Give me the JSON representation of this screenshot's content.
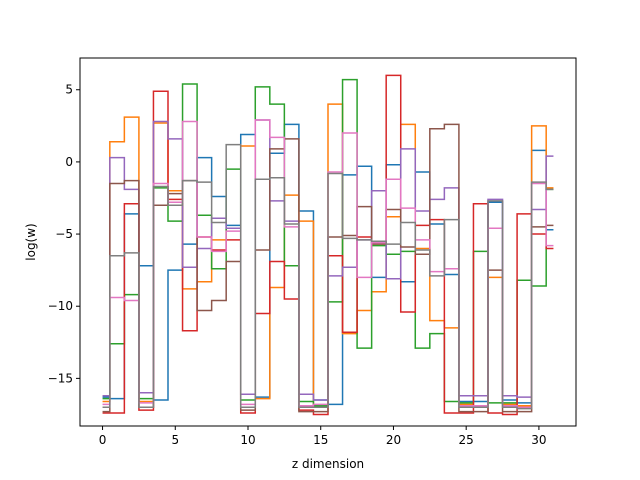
{
  "chart_data": {
    "type": "line",
    "drawstyle": "steps-mid",
    "title": "",
    "xlabel": "z dimension",
    "ylabel": "log(w)",
    "xlim": [
      -1.55,
      32.55
    ],
    "ylim": [
      -18.3,
      7.2
    ],
    "xticks": [
      0,
      5,
      10,
      15,
      20,
      25,
      30
    ],
    "yticks": [
      -15,
      -10,
      -5,
      0,
      5
    ],
    "grid": false,
    "legend": "none",
    "x": [
      0,
      1,
      2,
      3,
      4,
      5,
      6,
      7,
      8,
      9,
      10,
      11,
      12,
      13,
      14,
      15,
      16,
      17,
      18,
      19,
      20,
      21,
      22,
      23,
      24,
      25,
      26,
      27,
      28,
      29,
      30,
      31
    ],
    "series": [
      {
        "color": "#1f77b4",
        "values": [
          -16.3,
          -16.4,
          -3.6,
          -7.2,
          -16.5,
          -7.5,
          -5.7,
          0.3,
          -2.4,
          -4.4,
          1.9,
          -16.3,
          0.6,
          2.6,
          -3.4,
          -16.5,
          -16.8,
          -0.9,
          -0.3,
          -8.0,
          -0.2,
          -8.3,
          -0.7,
          -4.3,
          -7.8,
          -16.6,
          -16.6,
          -2.8,
          -16.5,
          -16.7,
          0.8,
          -4.7
        ]
      },
      {
        "color": "#ff7f0e",
        "values": [
          -16.6,
          1.4,
          3.1,
          -16.6,
          2.7,
          -2.0,
          -8.8,
          -8.3,
          -5.4,
          -4.6,
          1.1,
          -16.4,
          -8.7,
          -2.3,
          -4.1,
          -16.9,
          4.0,
          -11.9,
          -10.3,
          -9.0,
          -3.8,
          2.6,
          -6.0,
          -11.0,
          -11.5,
          -16.8,
          -16.9,
          -8.0,
          -16.8,
          -16.9,
          2.5,
          -1.8
        ]
      },
      {
        "color": "#2ca02c",
        "values": [
          -16.4,
          -12.6,
          -9.2,
          -16.4,
          -1.8,
          -4.1,
          5.4,
          -3.7,
          -7.4,
          -0.5,
          -16.5,
          5.2,
          4.0,
          -7.2,
          -16.6,
          -16.9,
          -9.7,
          5.7,
          -12.9,
          -5.8,
          -6.4,
          -6.2,
          -12.9,
          -11.9,
          -16.6,
          -16.7,
          -6.2,
          -16.7,
          -16.7,
          -8.2,
          -8.6,
          -1.9
        ]
      },
      {
        "color": "#d62728",
        "values": [
          -17.4,
          -17.4,
          -2.9,
          -17.2,
          4.9,
          -2.6,
          -11.7,
          -5.2,
          -6.1,
          -5.4,
          -17.4,
          -10.5,
          -6.9,
          -9.5,
          -17.2,
          -17.5,
          -6.5,
          -11.8,
          -5.2,
          -5.6,
          6.0,
          -10.4,
          -4.4,
          -4.0,
          -17.4,
          -17.4,
          -2.9,
          -17.4,
          -17.5,
          -3.6,
          -5.0,
          -6.0
        ]
      },
      {
        "color": "#9467bd",
        "values": [
          -16.2,
          0.3,
          -1.9,
          -16.0,
          2.8,
          1.6,
          -7.3,
          -6.0,
          -3.9,
          -4.6,
          -16.1,
          2.9,
          -2.7,
          -4.1,
          -16.1,
          -16.5,
          -7.9,
          -7.3,
          -5.4,
          -2.0,
          -8.1,
          0.9,
          -3.4,
          -2.6,
          -1.8,
          -16.2,
          -16.2,
          -2.6,
          -16.2,
          -16.3,
          -3.3,
          0.4
        ]
      },
      {
        "color": "#8c564b",
        "values": [
          -17.3,
          -1.5,
          -1.3,
          -17.0,
          -3.0,
          -2.2,
          -1.3,
          -10.3,
          -9.6,
          -6.9,
          -17.2,
          -6.1,
          0.9,
          1.6,
          -17.3,
          -17.3,
          -5.2,
          -5.1,
          -3.1,
          -5.7,
          -3.3,
          -5.9,
          -6.4,
          2.3,
          2.6,
          -17.3,
          -17.3,
          -7.5,
          -17.3,
          -17.3,
          -4.5,
          -4.4
        ]
      },
      {
        "color": "#e377c2",
        "values": [
          -16.8,
          -9.4,
          -9.6,
          -16.7,
          -1.5,
          -2.8,
          2.8,
          -5.2,
          -6.2,
          -4.8,
          -16.8,
          2.9,
          1.7,
          -4.5,
          -16.9,
          -16.8,
          -0.7,
          2.0,
          -8.0,
          -5.6,
          -1.2,
          -3.2,
          -5.4,
          -7.6,
          -7.4,
          -16.9,
          -16.9,
          -4.6,
          -16.9,
          -17.0,
          -1.5,
          -5.8
        ]
      },
      {
        "color": "#7f7f7f",
        "values": [
          -17.0,
          -6.5,
          -6.3,
          -17.0,
          -1.7,
          -3.0,
          -1.3,
          -1.4,
          -4.2,
          1.2,
          -17.0,
          -1.2,
          -1.1,
          -4.3,
          -17.0,
          -17.0,
          -0.8,
          -5.3,
          -5.4,
          -5.5,
          -5.7,
          -4.2,
          -6.1,
          -7.9,
          -4.0,
          -17.0,
          -17.0,
          -2.7,
          -17.0,
          -17.1,
          -1.4,
          -1.9
        ]
      }
    ]
  }
}
